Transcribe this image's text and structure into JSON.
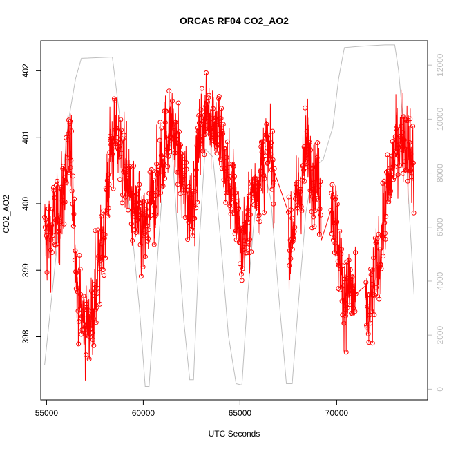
{
  "chart_data": {
    "type": "line",
    "title": "ORCAS RF04 CO2_AO2",
    "xlabel": "UTC Seconds",
    "ylabel": "CO2_AO2",
    "xlim": [
      54700,
      74700
    ],
    "ylim": [
      397.05,
      402.45
    ],
    "y2lim": [
      -400,
      12900
    ],
    "x_ticks": [
      55000,
      60000,
      65000,
      70000
    ],
    "y_ticks": [
      398,
      399,
      400,
      401,
      402
    ],
    "y2_ticks": [
      0,
      2000,
      4000,
      6000,
      8000,
      10000,
      12000
    ],
    "grid": false,
    "legend": "none",
    "colors": {
      "primary": "#ff0000",
      "secondary": "#bebebe",
      "axis": "#000000",
      "axis2": "#bebebe"
    },
    "series": [
      {
        "axis": "left",
        "style": "line+points",
        "anchors": [
          [
            54900,
            399.5
          ],
          [
            55300,
            399.6
          ],
          [
            55600,
            399.8
          ],
          [
            55900,
            400.2
          ],
          [
            56200,
            400.8
          ],
          [
            56400,
            400.2
          ],
          [
            56600,
            398.6
          ],
          [
            56900,
            398.2
          ],
          [
            57200,
            398.2
          ],
          [
            57500,
            398.6
          ],
          [
            57800,
            399.2
          ],
          [
            58100,
            400.0
          ],
          [
            58300,
            400.8
          ],
          [
            58600,
            401.0
          ],
          [
            59000,
            400.6
          ],
          [
            59400,
            400.0
          ],
          [
            59800,
            399.6
          ],
          [
            60100,
            399.5
          ],
          [
            60500,
            400.0
          ],
          [
            60900,
            400.6
          ],
          [
            61200,
            401.1
          ],
          [
            61500,
            401.2
          ],
          [
            61800,
            400.6
          ],
          [
            62100,
            400.2
          ],
          [
            62400,
            400.0
          ],
          [
            62700,
            400.4
          ],
          [
            63000,
            401.2
          ],
          [
            63400,
            401.4
          ],
          [
            63800,
            401.2
          ],
          [
            64200,
            400.6
          ],
          [
            64600,
            400.2
          ],
          [
            64900,
            399.8
          ],
          [
            65100,
            399.4
          ],
          [
            65400,
            399.6
          ],
          [
            65700,
            400.2
          ],
          [
            66000,
            400.4
          ],
          [
            66300,
            400.8
          ],
          [
            66600,
            400.6
          ],
          [
            66900,
            400.2
          ],
          [
            67200,
            399.7
          ],
          [
            67600,
            399.5
          ],
          [
            67900,
            399.9
          ],
          [
            68200,
            400.4
          ],
          [
            68500,
            400.9
          ],
          [
            68800,
            400.5
          ],
          [
            69300,
            400.1
          ],
          [
            69700,
            400.2
          ],
          [
            70000,
            399.6
          ],
          [
            70300,
            398.8
          ],
          [
            70700,
            398.7
          ],
          [
            71000,
            398.5
          ],
          [
            71300,
            398.2
          ],
          [
            71700,
            398.3
          ],
          [
            72000,
            398.8
          ],
          [
            72300,
            399.5
          ],
          [
            72600,
            400.0
          ],
          [
            72900,
            400.6
          ],
          [
            73200,
            401.0
          ],
          [
            73500,
            401.1
          ],
          [
            73800,
            400.7
          ],
          [
            74000,
            400.5
          ]
        ]
      },
      {
        "axis": "right",
        "style": "line",
        "points": [
          [
            54900,
            900
          ],
          [
            55500,
            5000
          ],
          [
            56100,
            9800
          ],
          [
            56500,
            11500
          ],
          [
            56800,
            12250
          ],
          [
            58400,
            12300
          ],
          [
            58800,
            10000
          ],
          [
            59400,
            6000
          ],
          [
            59800,
            3000
          ],
          [
            60100,
            100
          ],
          [
            60300,
            100
          ],
          [
            60700,
            4500
          ],
          [
            61000,
            7500
          ],
          [
            61300,
            9200
          ],
          [
            61500,
            8800
          ],
          [
            61800,
            5500
          ],
          [
            62100,
            2500
          ],
          [
            62400,
            350
          ],
          [
            62600,
            350
          ],
          [
            62900,
            5500
          ],
          [
            63200,
            8900
          ],
          [
            63600,
            8600
          ],
          [
            64000,
            5500
          ],
          [
            64400,
            2000
          ],
          [
            64800,
            200
          ],
          [
            65100,
            150
          ],
          [
            65400,
            3500
          ],
          [
            65700,
            6000
          ],
          [
            66000,
            7800
          ],
          [
            66300,
            8000
          ],
          [
            66600,
            7000
          ],
          [
            67000,
            3500
          ],
          [
            67400,
            200
          ],
          [
            67700,
            200
          ],
          [
            68000,
            3000
          ],
          [
            68400,
            6500
          ],
          [
            68800,
            8200
          ],
          [
            69300,
            8500
          ],
          [
            69800,
            9700
          ],
          [
            70100,
            11500
          ],
          [
            70400,
            12650
          ],
          [
            71300,
            12700
          ],
          [
            72500,
            12750
          ],
          [
            73000,
            12750
          ],
          [
            73200,
            11800
          ],
          [
            73600,
            8500
          ],
          [
            74000,
            3500
          ]
        ]
      }
    ]
  }
}
